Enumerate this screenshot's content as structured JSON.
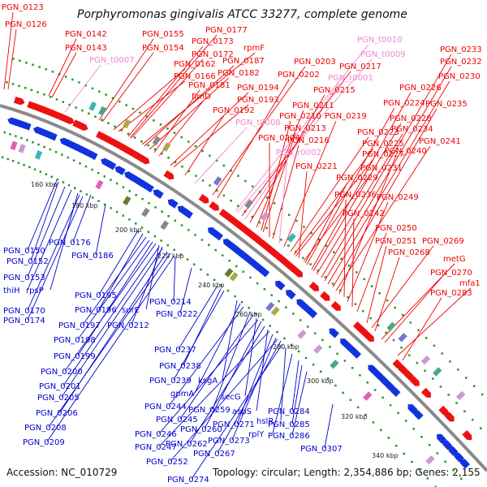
{
  "title": "Porphyromonas gingivalis ATCC 33277, complete genome",
  "accession_text": "Accession: NC_010729",
  "summary_text": "Topology: circular; Length: 2,354,886 bp; Genes: 2,155",
  "colors": {
    "outer_label": "#ee0000",
    "rna_label": "#ee88cc",
    "inner_label": "#0000cc",
    "backbone": "#888888",
    "dots": "#229922"
  },
  "kbp_ticks": [
    "160 kbp",
    "180 kbp",
    "200 kbp",
    "220 kbp",
    "240 kbp",
    "260 kbp",
    "280 kbp",
    "300 kbp",
    "320 kbp",
    "340 kbp"
  ],
  "outer_labels": [
    {
      "text": "PGN_0123",
      "kind": "gene"
    },
    {
      "text": "PGN_0126",
      "kind": "gene"
    },
    {
      "text": "PGN_0142",
      "kind": "gene"
    },
    {
      "text": "PGN_0143",
      "kind": "gene"
    },
    {
      "text": "PGN_t0007",
      "kind": "rna"
    },
    {
      "text": "PGN_0155",
      "kind": "gene"
    },
    {
      "text": "PGN_0154",
      "kind": "gene"
    },
    {
      "text": "PGN_0162",
      "kind": "gene"
    },
    {
      "text": "PGN_0166",
      "kind": "gene"
    },
    {
      "text": "PGN_0177",
      "kind": "gene"
    },
    {
      "text": "PGN_0173",
      "kind": "gene"
    },
    {
      "text": "PGN_0172",
      "kind": "gene"
    },
    {
      "text": "rpmF",
      "kind": "gene"
    },
    {
      "text": "PGN_0187",
      "kind": "gene"
    },
    {
      "text": "PGN_0182",
      "kind": "gene"
    },
    {
      "text": "PGN_0181",
      "kind": "gene"
    },
    {
      "text": "fimD",
      "kind": "gene"
    },
    {
      "text": "PGN_0194",
      "kind": "gene"
    },
    {
      "text": "PGN_0193",
      "kind": "gene"
    },
    {
      "text": "PGN_0192",
      "kind": "gene"
    },
    {
      "text": "PGN_t0008",
      "kind": "rna"
    },
    {
      "text": "PGN_0203",
      "kind": "gene"
    },
    {
      "text": "PGN_0202",
      "kind": "gene"
    },
    {
      "text": "PGN_t0010",
      "kind": "rna"
    },
    {
      "text": "PGN_t0009",
      "kind": "rna"
    },
    {
      "text": "PGN_0217",
      "kind": "gene"
    },
    {
      "text": "PGN_r0001",
      "kind": "rna"
    },
    {
      "text": "PGN_0215",
      "kind": "gene"
    },
    {
      "text": "PGN_0211",
      "kind": "gene"
    },
    {
      "text": "PGN_0210",
      "kind": "gene"
    },
    {
      "text": "PGN_0213",
      "kind": "gene"
    },
    {
      "text": "PGN_0204",
      "kind": "gene"
    },
    {
      "text": "PGN_0216",
      "kind": "gene"
    },
    {
      "text": "PGN_r0002",
      "kind": "rna"
    },
    {
      "text": "PGN_0219",
      "kind": "gene"
    },
    {
      "text": "PGN_0223",
      "kind": "gene"
    },
    {
      "text": "PGN_0225",
      "kind": "gene"
    },
    {
      "text": "PGN_0227",
      "kind": "gene"
    },
    {
      "text": "PGN_0221",
      "kind": "gene"
    },
    {
      "text": "PGN_0231",
      "kind": "gene"
    },
    {
      "text": "PGN_0229",
      "kind": "gene"
    },
    {
      "text": "PGN_0224",
      "kind": "gene"
    },
    {
      "text": "PGN_0226",
      "kind": "gene"
    },
    {
      "text": "PGN_0228",
      "kind": "gene"
    },
    {
      "text": "PGN_0234",
      "kind": "gene"
    },
    {
      "text": "PGN_0233",
      "kind": "gene"
    },
    {
      "text": "PGN_0232",
      "kind": "gene"
    },
    {
      "text": "PGN_0230",
      "kind": "gene"
    },
    {
      "text": "PGN_0235",
      "kind": "gene"
    },
    {
      "text": "PGN_0241",
      "kind": "gene"
    },
    {
      "text": "PGN_0240",
      "kind": "gene"
    },
    {
      "text": "PGN_0236",
      "kind": "gene"
    },
    {
      "text": "PGN_0249",
      "kind": "gene"
    },
    {
      "text": "PGN_0242",
      "kind": "gene"
    },
    {
      "text": "PGN_0250",
      "kind": "gene"
    },
    {
      "text": "PGN_0251",
      "kind": "gene"
    },
    {
      "text": "PGN_0269",
      "kind": "gene"
    },
    {
      "text": "PGN_0268",
      "kind": "gene"
    },
    {
      "text": "metG",
      "kind": "gene"
    },
    {
      "text": "PGN_0270",
      "kind": "gene"
    },
    {
      "text": "mfa1",
      "kind": "gene"
    },
    {
      "text": "PGN_0283",
      "kind": "gene"
    }
  ],
  "inner_labels": [
    {
      "text": "PGN_0150"
    },
    {
      "text": "PGN_0176"
    },
    {
      "text": "PGN_0152"
    },
    {
      "text": "PGN_0186"
    },
    {
      "text": "PGN_0153"
    },
    {
      "text": "thiH"
    },
    {
      "text": "rpsP"
    },
    {
      "text": "PGN_0170"
    },
    {
      "text": "PGN_0174"
    },
    {
      "text": "PGN_0195"
    },
    {
      "text": "PGN_0196"
    },
    {
      "text": "surE"
    },
    {
      "text": "PGN_0214"
    },
    {
      "text": "PGN_0222"
    },
    {
      "text": "PGN_0197"
    },
    {
      "text": "PGN_0212"
    },
    {
      "text": "PGN_0198"
    },
    {
      "text": "PGN_0199"
    },
    {
      "text": "PGN_0200"
    },
    {
      "text": "PGN_0201"
    },
    {
      "text": "PGN_0205"
    },
    {
      "text": "PGN_0206"
    },
    {
      "text": "PGN_0208"
    },
    {
      "text": "PGN_0209"
    },
    {
      "text": "PGN_0237"
    },
    {
      "text": "PGN_0238"
    },
    {
      "text": "PGN_0239"
    },
    {
      "text": "ksgA"
    },
    {
      "text": "gpmA"
    },
    {
      "text": "secG"
    },
    {
      "text": "PGN_0244"
    },
    {
      "text": "PGN_0259"
    },
    {
      "text": "aspS"
    },
    {
      "text": "PGN_0245"
    },
    {
      "text": "PGN_0284"
    },
    {
      "text": "PGN_0246"
    },
    {
      "text": "PGN_0260"
    },
    {
      "text": "PGN_0271"
    },
    {
      "text": "hslR"
    },
    {
      "text": "PGN_0285"
    },
    {
      "text": "PGN_0262"
    },
    {
      "text": "PGN_0273"
    },
    {
      "text": "rplY"
    },
    {
      "text": "PGN_0286"
    },
    {
      "text": "PGN_0247"
    },
    {
      "text": "PGN_0267"
    },
    {
      "text": "PGN_0252"
    },
    {
      "text": "PGN_0307"
    },
    {
      "text": "PGN_0274"
    }
  ]
}
